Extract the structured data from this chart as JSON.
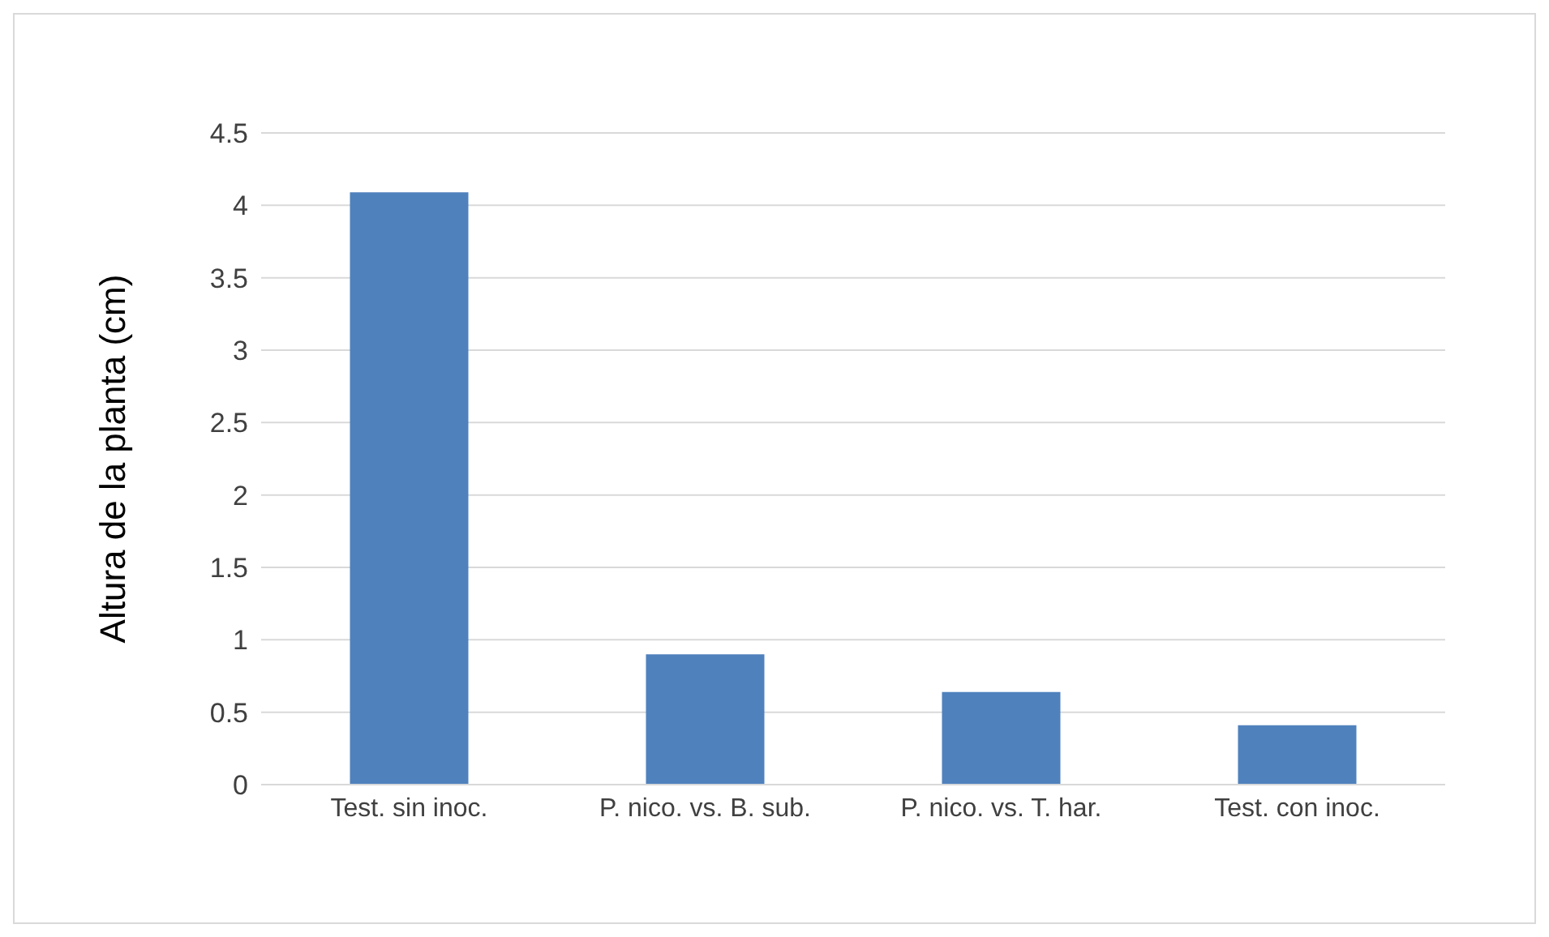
{
  "chart_data": {
    "type": "bar",
    "ylabel": "Altura de la planta (cm)",
    "categories": [
      "Test. sin inoc.",
      "P. nico. vs. B. sub.",
      "P. nico. vs. T. har.",
      "Test. con inoc."
    ],
    "values": [
      4.09,
      0.9,
      0.64,
      0.41
    ],
    "color": "#4f81bd",
    "ylim": [
      0,
      4.5
    ],
    "yticks": [
      0,
      0.5,
      1,
      1.5,
      2,
      2.5,
      3,
      3.5,
      4,
      4.5
    ],
    "grid": "y"
  }
}
